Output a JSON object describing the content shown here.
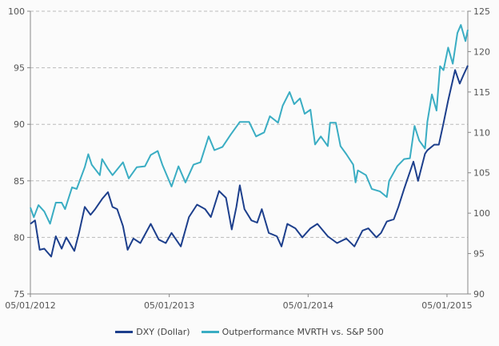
{
  "chart_data": {
    "type": "line",
    "title": "",
    "x_unit": "months since 05/01/2012",
    "x_range": [
      0,
      37.8
    ],
    "x_ticks": [
      {
        "x": 0,
        "label": "05/01/2012"
      },
      {
        "x": 12,
        "label": "05/01/2013"
      },
      {
        "x": 24,
        "label": "05/01/2014"
      },
      {
        "x": 36,
        "label": "05/01/2015"
      }
    ],
    "y_left": {
      "range": [
        75,
        100
      ],
      "ticks": [
        "75",
        "80",
        "85",
        "90",
        "95",
        "100"
      ]
    },
    "y_right": {
      "range": [
        90,
        125
      ],
      "ticks": [
        "90",
        "95",
        "100",
        "105",
        "110",
        "115",
        "120",
        "125"
      ]
    },
    "grid": "horizontal dashed",
    "legend_position": "bottom",
    "series": [
      {
        "name": "DXY (Dollar)",
        "axis": "left",
        "color": "#1d3f8c",
        "points": [
          [
            0,
            81.2
          ],
          [
            0.4,
            81.5
          ],
          [
            0.8,
            78.9
          ],
          [
            1.2,
            79
          ],
          [
            1.8,
            78.3
          ],
          [
            2.2,
            80.1
          ],
          [
            2.7,
            79
          ],
          [
            3.1,
            80
          ],
          [
            3.8,
            78.8
          ],
          [
            4.2,
            80.4
          ],
          [
            4.7,
            82.7
          ],
          [
            5.2,
            82
          ],
          [
            5.6,
            82.5
          ],
          [
            6.2,
            83.4
          ],
          [
            6.7,
            84
          ],
          [
            7.1,
            82.7
          ],
          [
            7.5,
            82.5
          ],
          [
            8.0,
            81
          ],
          [
            8.4,
            78.9
          ],
          [
            8.9,
            79.9
          ],
          [
            9.5,
            79.5
          ],
          [
            10.4,
            81.2
          ],
          [
            11.1,
            79.8
          ],
          [
            11.7,
            79.5
          ],
          [
            12.2,
            80.4
          ],
          [
            13.0,
            79.2
          ],
          [
            13.7,
            81.8
          ],
          [
            14.4,
            82.9
          ],
          [
            15.1,
            82.5
          ],
          [
            15.6,
            81.8
          ],
          [
            16.3,
            84.1
          ],
          [
            16.9,
            83.5
          ],
          [
            17.4,
            80.7
          ],
          [
            17.8,
            82.7
          ],
          [
            18.1,
            84.6
          ],
          [
            18.5,
            82.5
          ],
          [
            19.1,
            81.5
          ],
          [
            19.6,
            81.3
          ],
          [
            20.0,
            82.5
          ],
          [
            20.6,
            80.4
          ],
          [
            21.3,
            80.1
          ],
          [
            21.7,
            79.2
          ],
          [
            22.2,
            81.2
          ],
          [
            22.9,
            80.8
          ],
          [
            23.5,
            80
          ],
          [
            24.2,
            80.8
          ],
          [
            24.8,
            81.2
          ],
          [
            25.7,
            80.1
          ],
          [
            26.5,
            79.5
          ],
          [
            27.3,
            79.9
          ],
          [
            28.0,
            79.2
          ],
          [
            28.7,
            80.6
          ],
          [
            29.2,
            80.8
          ],
          [
            29.9,
            80
          ],
          [
            30.3,
            80.4
          ],
          [
            30.8,
            81.4
          ],
          [
            31.4,
            81.6
          ],
          [
            31.8,
            82.7
          ],
          [
            32.3,
            84.3
          ],
          [
            32.7,
            85.5
          ],
          [
            33.1,
            86.7
          ],
          [
            33.5,
            85
          ],
          [
            34.1,
            87.4
          ],
          [
            34.3,
            87.7
          ],
          [
            34.9,
            88.2
          ],
          [
            35.3,
            88.2
          ],
          [
            35.7,
            90.1
          ],
          [
            36.1,
            92.1
          ],
          [
            36.7,
            94.8
          ],
          [
            37.1,
            93.6
          ],
          [
            37.4,
            94.3
          ],
          [
            37.8,
            95.2
          ]
        ]
      },
      {
        "name": "Outperformance MVRTH vs. S&P 500",
        "axis": "right",
        "color": "#3aadc3",
        "points": [
          [
            0,
            100.7
          ],
          [
            0.3,
            99.5
          ],
          [
            0.7,
            101
          ],
          [
            1.2,
            100.2
          ],
          [
            1.7,
            98.7
          ],
          [
            2.2,
            101.3
          ],
          [
            2.7,
            101.3
          ],
          [
            3.0,
            100.5
          ],
          [
            3.6,
            103.2
          ],
          [
            4.0,
            103
          ],
          [
            4.7,
            105.7
          ],
          [
            5.0,
            107.3
          ],
          [
            5.3,
            106
          ],
          [
            6.0,
            104.7
          ],
          [
            6.2,
            106.7
          ],
          [
            6.7,
            105.5
          ],
          [
            7.1,
            104.7
          ],
          [
            8.0,
            106.3
          ],
          [
            8.5,
            104.3
          ],
          [
            9.2,
            105.7
          ],
          [
            9.9,
            105.8
          ],
          [
            10.4,
            107.2
          ],
          [
            11.0,
            107.7
          ],
          [
            11.4,
            106
          ],
          [
            12.2,
            103.3
          ],
          [
            12.8,
            105.8
          ],
          [
            13.4,
            103.8
          ],
          [
            14.1,
            106
          ],
          [
            14.7,
            106.3
          ],
          [
            15.4,
            109.5
          ],
          [
            15.9,
            107.8
          ],
          [
            16.6,
            108.2
          ],
          [
            17.3,
            109.7
          ],
          [
            18.1,
            111.3
          ],
          [
            18.9,
            111.3
          ],
          [
            19.5,
            109.5
          ],
          [
            20.2,
            110
          ],
          [
            20.7,
            112
          ],
          [
            21.4,
            111.2
          ],
          [
            21.8,
            113.3
          ],
          [
            22.4,
            115
          ],
          [
            22.8,
            113.5
          ],
          [
            23.3,
            114.2
          ],
          [
            23.7,
            112.3
          ],
          [
            24.2,
            112.8
          ],
          [
            24.6,
            108.5
          ],
          [
            25.1,
            109.5
          ],
          [
            25.7,
            108.3
          ],
          [
            25.9,
            111.2
          ],
          [
            26.4,
            111.2
          ],
          [
            26.8,
            108.3
          ],
          [
            27.3,
            107.3
          ],
          [
            27.9,
            106
          ],
          [
            28.1,
            103.8
          ],
          [
            28.3,
            105.3
          ],
          [
            29.0,
            104.7
          ],
          [
            29.5,
            103
          ],
          [
            30.2,
            102.7
          ],
          [
            30.8,
            102
          ],
          [
            31.0,
            104
          ],
          [
            31.7,
            105.8
          ],
          [
            32.3,
            106.7
          ],
          [
            32.8,
            106.8
          ],
          [
            33.2,
            110.8
          ],
          [
            33.6,
            109
          ],
          [
            34.1,
            108
          ],
          [
            34.3,
            111.3
          ],
          [
            34.7,
            114.7
          ],
          [
            35.1,
            112.7
          ],
          [
            35.4,
            118.2
          ],
          [
            35.7,
            117.7
          ],
          [
            36.1,
            120.5
          ],
          [
            36.5,
            118.5
          ],
          [
            36.9,
            122.3
          ],
          [
            37.2,
            123.3
          ],
          [
            37.6,
            121.3
          ],
          [
            37.8,
            122.7
          ]
        ]
      }
    ]
  }
}
